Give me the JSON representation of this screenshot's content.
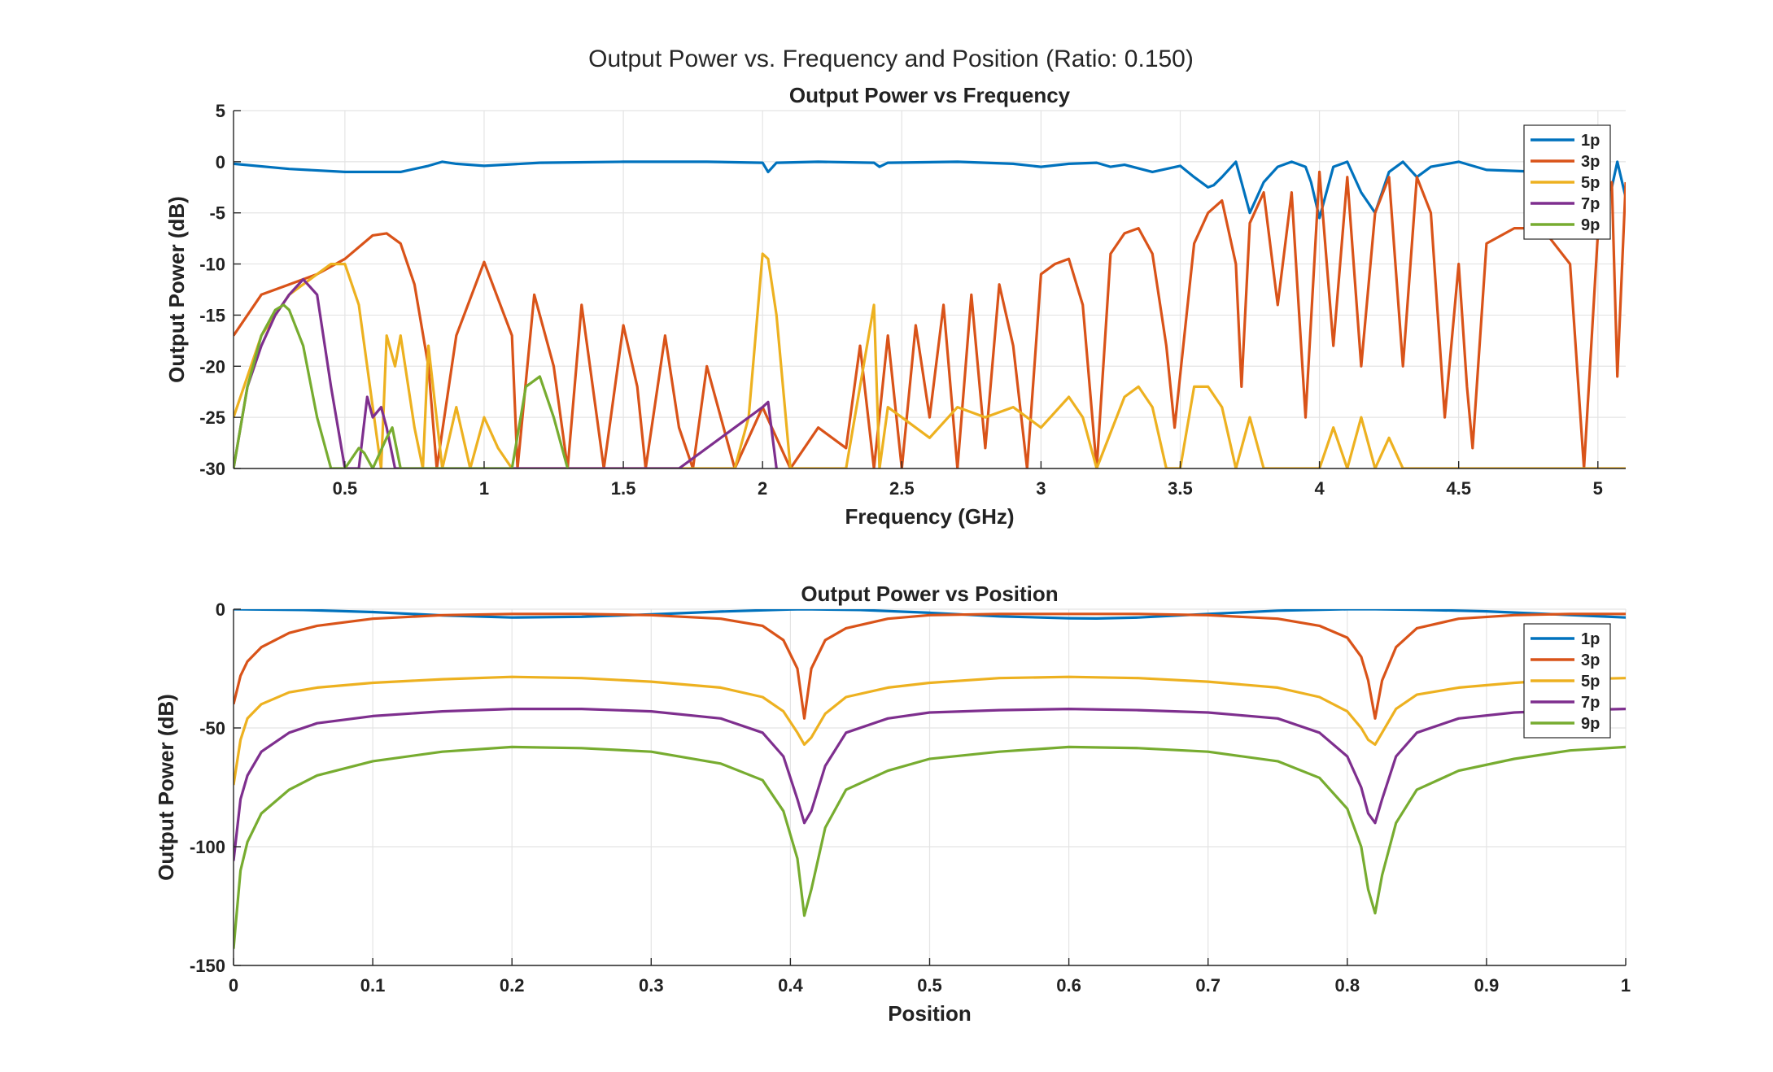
{
  "figure": {
    "suptitle": "Output Power vs. Frequency and Position (Ratio: 0.150)"
  },
  "chart_data": [
    {
      "type": "line",
      "title": "Output Power vs Frequency",
      "xlabel": "Frequency (GHz)",
      "ylabel": "Output Power (dB)",
      "xlim": [
        0.1,
        5.1
      ],
      "ylim": [
        -30,
        5
      ],
      "xticks": [
        0.5,
        1,
        1.5,
        2,
        2.5,
        3,
        3.5,
        4,
        4.5,
        5
      ],
      "xtick_labels": [
        "0.5",
        "1",
        "1.5",
        "2",
        "2.5",
        "3",
        "3.5",
        "4",
        "4.5",
        "5"
      ],
      "yticks": [
        5,
        0,
        -5,
        -10,
        -15,
        -20,
        -25,
        -30
      ],
      "ytick_labels": [
        "5",
        "0",
        "-5",
        "-10",
        "-15",
        "-20",
        "-25",
        "-30"
      ],
      "grid": true,
      "legend": "top-right",
      "series": [
        {
          "name": "1p",
          "color": "#0072BD",
          "x": [
            0.1,
            0.3,
            0.5,
            0.7,
            0.8,
            0.85,
            0.9,
            1.0,
            1.2,
            1.5,
            1.8,
            2.0,
            2.02,
            2.05,
            2.2,
            2.4,
            2.42,
            2.45,
            2.7,
            2.9,
            3.0,
            3.1,
            3.2,
            3.25,
            3.3,
            3.4,
            3.5,
            3.55,
            3.6,
            3.62,
            3.65,
            3.7,
            3.72,
            3.75,
            3.8,
            3.85,
            3.9,
            3.95,
            3.97,
            4.0,
            4.05,
            4.1,
            4.15,
            4.2,
            4.25,
            4.3,
            4.35,
            4.4,
            4.5,
            4.6,
            4.8,
            5.0,
            5.05,
            5.07,
            5.1
          ],
          "y": [
            -0.2,
            -0.7,
            -1.0,
            -1.0,
            -0.4,
            0.0,
            -0.2,
            -0.4,
            -0.1,
            0.0,
            0.0,
            -0.1,
            -1.0,
            -0.1,
            0.0,
            -0.1,
            -0.5,
            -0.1,
            0.0,
            -0.2,
            -0.5,
            -0.2,
            -0.1,
            -0.5,
            -0.3,
            -1.0,
            -0.4,
            -1.5,
            -2.5,
            -2.3,
            -1.5,
            0.0,
            -2.0,
            -5.0,
            -2.0,
            -0.5,
            0.0,
            -0.5,
            -2.0,
            -5.5,
            -0.5,
            0.0,
            -3.0,
            -5.0,
            -1.0,
            0.0,
            -1.5,
            -0.5,
            0.0,
            -0.8,
            -1.0,
            -1.0,
            -2.5,
            0.0,
            -3.5
          ]
        },
        {
          "name": "3p",
          "color": "#D95319",
          "x": [
            0.1,
            0.2,
            0.3,
            0.4,
            0.5,
            0.6,
            0.65,
            0.7,
            0.75,
            0.8,
            0.83,
            0.9,
            1.0,
            1.1,
            1.12,
            1.18,
            1.25,
            1.3,
            1.35,
            1.4,
            1.43,
            1.5,
            1.55,
            1.58,
            1.65,
            1.7,
            1.75,
            1.8,
            1.9,
            2.0,
            2.1,
            2.2,
            2.3,
            2.35,
            2.4,
            2.45,
            2.5,
            2.55,
            2.6,
            2.65,
            2.7,
            2.75,
            2.8,
            2.85,
            2.9,
            2.95,
            3.0,
            3.05,
            3.1,
            3.15,
            3.2,
            3.25,
            3.3,
            3.35,
            3.4,
            3.45,
            3.48,
            3.55,
            3.6,
            3.65,
            3.7,
            3.72,
            3.75,
            3.8,
            3.85,
            3.9,
            3.95,
            4.0,
            4.05,
            4.1,
            4.15,
            4.2,
            4.25,
            4.3,
            4.35,
            4.4,
            4.45,
            4.5,
            4.53,
            4.55,
            4.6,
            4.7,
            4.8,
            4.9,
            4.95,
            5.0,
            5.05,
            5.07,
            5.1
          ],
          "y": [
            -17,
            -13,
            -12,
            -11,
            -9.5,
            -7.2,
            -7.0,
            -8.0,
            -12,
            -20,
            -30,
            -17,
            -9.8,
            -17,
            -30,
            -13,
            -20,
            -30,
            -14,
            -24,
            -30,
            -16,
            -22,
            -30,
            -17,
            -26,
            -30,
            -20,
            -30,
            -24,
            -30,
            -26,
            -28,
            -18,
            -30,
            -17,
            -30,
            -16,
            -25,
            -14,
            -30,
            -13,
            -28,
            -12,
            -18,
            -30,
            -11,
            -10,
            -9.5,
            -14,
            -30,
            -9,
            -7,
            -6.5,
            -9,
            -18,
            -26,
            -8,
            -5,
            -3.8,
            -10,
            -22,
            -6,
            -3,
            -14,
            -3,
            -25,
            -1,
            -18,
            -1.5,
            -20,
            -5,
            -1.5,
            -20,
            -1.5,
            -5,
            -25,
            -10,
            -22,
            -28,
            -8,
            -6.5,
            -6.5,
            -10,
            -30,
            -7,
            -2,
            -21,
            -2
          ]
        },
        {
          "name": "5p",
          "color": "#EDB120",
          "x": [
            0.1,
            0.2,
            0.3,
            0.4,
            0.45,
            0.5,
            0.55,
            0.6,
            0.63,
            0.65,
            0.68,
            0.7,
            0.75,
            0.78,
            0.8,
            0.85,
            0.9,
            0.95,
            1.0,
            1.05,
            1.1,
            1.3,
            1.5,
            1.7,
            1.8,
            1.9,
            1.95,
            2.0,
            2.02,
            2.05,
            2.1,
            2.2,
            2.3,
            2.4,
            2.42,
            2.45,
            2.5,
            2.6,
            2.7,
            2.8,
            2.9,
            3.0,
            3.1,
            3.15,
            3.2,
            3.3,
            3.35,
            3.4,
            3.45,
            3.5,
            3.55,
            3.6,
            3.65,
            3.7,
            3.75,
            3.8,
            3.85,
            3.9,
            3.95,
            4.0,
            4.05,
            4.1,
            4.15,
            4.2,
            4.25,
            4.3,
            5.0,
            5.1
          ],
          "y": [
            -25,
            -17,
            -13,
            -11,
            -10,
            -10,
            -14,
            -24,
            -30,
            -17,
            -20,
            -17,
            -26,
            -30,
            -18,
            -30,
            -24,
            -30,
            -25,
            -28,
            -30,
            -30,
            -30,
            -30,
            -30,
            -30,
            -25,
            -9,
            -9.5,
            -15,
            -30,
            -30,
            -30,
            -14,
            -30,
            -24,
            -25,
            -27,
            -24,
            -25,
            -24,
            -26,
            -23,
            -25,
            -30,
            -23,
            -22,
            -24,
            -30,
            -30,
            -22,
            -22,
            -24,
            -30,
            -25,
            -30,
            -30,
            -30,
            -30,
            -30,
            -26,
            -30,
            -25,
            -30,
            -27,
            -30,
            -30,
            -30
          ]
        },
        {
          "name": "7p",
          "color": "#7E2F8E",
          "x": [
            0.1,
            0.15,
            0.2,
            0.25,
            0.3,
            0.35,
            0.4,
            0.45,
            0.5,
            0.55,
            0.58,
            0.6,
            0.63,
            0.65,
            0.68,
            0.7,
            1.7,
            2.0,
            2.02,
            2.05
          ],
          "y": [
            -30,
            -22,
            -18,
            -15,
            -13,
            -11.5,
            -13,
            -22,
            -30,
            -30,
            -23,
            -25,
            -24,
            -26,
            -30,
            -30,
            -30,
            -24,
            -23.5,
            -30
          ]
        },
        {
          "name": "9p",
          "color": "#77AC30",
          "x": [
            0.1,
            0.15,
            0.2,
            0.25,
            0.28,
            0.3,
            0.35,
            0.4,
            0.45,
            0.5,
            0.55,
            0.57,
            0.6,
            0.65,
            0.67,
            0.7,
            1.1,
            1.15,
            1.2,
            1.25,
            1.3
          ],
          "y": [
            -30,
            -22,
            -17,
            -14.5,
            -14.0,
            -14.5,
            -18,
            -25,
            -30,
            -30,
            -28,
            -28.5,
            -30,
            -27,
            -26,
            -30,
            -30,
            -22,
            -21,
            -25,
            -30
          ]
        }
      ]
    },
    {
      "type": "line",
      "title": "Output Power vs Position",
      "xlabel": "Position",
      "ylabel": "Output Power (dB)",
      "xlim": [
        0,
        1
      ],
      "ylim": [
        -150,
        0
      ],
      "xticks": [
        0,
        0.1,
        0.2,
        0.3,
        0.4,
        0.5,
        0.6,
        0.7,
        0.8,
        0.9,
        1
      ],
      "xtick_labels": [
        "0",
        "0.1",
        "0.2",
        "0.3",
        "0.4",
        "0.5",
        "0.6",
        "0.7",
        "0.8",
        "0.9",
        "1"
      ],
      "yticks": [
        0,
        -50,
        -100,
        -150
      ],
      "ytick_labels": [
        "0",
        "-50",
        "-100",
        "-150"
      ],
      "grid": true,
      "legend": "top-right",
      "series": [
        {
          "name": "1p",
          "color": "#0072BD",
          "x": [
            0,
            0.05,
            0.1,
            0.15,
            0.2,
            0.25,
            0.3,
            0.35,
            0.4,
            0.41,
            0.45,
            0.5,
            0.55,
            0.6,
            0.62,
            0.65,
            0.7,
            0.75,
            0.8,
            0.82,
            0.85,
            0.9,
            0.95,
            1.0
          ],
          "y": [
            0,
            -0.3,
            -1.2,
            -2.6,
            -3.5,
            -3.2,
            -2.2,
            -1.0,
            -0.1,
            0,
            -0.3,
            -1.5,
            -3.0,
            -3.8,
            -3.9,
            -3.5,
            -2.0,
            -0.6,
            0,
            0,
            -0.2,
            -0.9,
            -2.2,
            -3.5
          ]
        },
        {
          "name": "3p",
          "color": "#D95319",
          "x": [
            0,
            0.005,
            0.01,
            0.02,
            0.04,
            0.06,
            0.1,
            0.15,
            0.2,
            0.25,
            0.3,
            0.35,
            0.38,
            0.395,
            0.405,
            0.41,
            0.415,
            0.425,
            0.44,
            0.47,
            0.5,
            0.55,
            0.6,
            0.65,
            0.7,
            0.75,
            0.78,
            0.8,
            0.81,
            0.815,
            0.82,
            0.825,
            0.835,
            0.85,
            0.88,
            0.92,
            0.96,
            1.0
          ],
          "y": [
            -40,
            -28,
            -22,
            -16,
            -10,
            -7,
            -4,
            -2.5,
            -2,
            -2,
            -2.5,
            -4,
            -7,
            -13,
            -25,
            -46,
            -25,
            -13,
            -8,
            -4,
            -2.5,
            -2,
            -2,
            -2,
            -2.5,
            -4,
            -7,
            -12,
            -20,
            -30,
            -46,
            -30,
            -16,
            -8,
            -4,
            -2.5,
            -2,
            -2
          ]
        },
        {
          "name": "5p",
          "color": "#EDB120",
          "x": [
            0,
            0.005,
            0.01,
            0.02,
            0.04,
            0.06,
            0.1,
            0.15,
            0.2,
            0.25,
            0.3,
            0.35,
            0.38,
            0.395,
            0.405,
            0.41,
            0.415,
            0.425,
            0.44,
            0.47,
            0.5,
            0.55,
            0.6,
            0.65,
            0.7,
            0.75,
            0.78,
            0.8,
            0.81,
            0.815,
            0.82,
            0.825,
            0.835,
            0.85,
            0.88,
            0.92,
            0.96,
            1.0
          ],
          "y": [
            -74,
            -55,
            -46,
            -40,
            -35,
            -33,
            -31,
            -29.5,
            -28.5,
            -29,
            -30.5,
            -33,
            -37,
            -43,
            -52,
            -57,
            -54,
            -44,
            -37,
            -33,
            -31,
            -29,
            -28.5,
            -29,
            -30.5,
            -33,
            -37,
            -43,
            -50,
            -55,
            -57,
            -52,
            -42,
            -36,
            -33,
            -31,
            -29.5,
            -29
          ]
        },
        {
          "name": "7p",
          "color": "#7E2F8E",
          "x": [
            0,
            0.005,
            0.01,
            0.02,
            0.04,
            0.06,
            0.1,
            0.15,
            0.2,
            0.25,
            0.3,
            0.35,
            0.38,
            0.395,
            0.405,
            0.41,
            0.415,
            0.425,
            0.44,
            0.47,
            0.5,
            0.55,
            0.6,
            0.65,
            0.7,
            0.75,
            0.78,
            0.8,
            0.81,
            0.815,
            0.82,
            0.825,
            0.835,
            0.85,
            0.88,
            0.92,
            0.96,
            1.0
          ],
          "y": [
            -106,
            -80,
            -70,
            -60,
            -52,
            -48,
            -45,
            -43,
            -42,
            -42,
            -43,
            -46,
            -52,
            -62,
            -80,
            -90,
            -85,
            -66,
            -52,
            -46,
            -43.5,
            -42.5,
            -42,
            -42.5,
            -43.5,
            -46,
            -52,
            -62,
            -75,
            -86,
            -90,
            -80,
            -62,
            -52,
            -46,
            -43.5,
            -42.5,
            -42
          ]
        },
        {
          "name": "9p",
          "color": "#77AC30",
          "x": [
            0,
            0.005,
            0.01,
            0.02,
            0.04,
            0.06,
            0.1,
            0.15,
            0.2,
            0.25,
            0.3,
            0.35,
            0.38,
            0.395,
            0.405,
            0.41,
            0.415,
            0.425,
            0.44,
            0.47,
            0.5,
            0.55,
            0.6,
            0.65,
            0.7,
            0.75,
            0.78,
            0.8,
            0.81,
            0.815,
            0.82,
            0.825,
            0.835,
            0.85,
            0.88,
            0.92,
            0.96,
            1.0
          ],
          "y": [
            -143,
            -110,
            -98,
            -86,
            -76,
            -70,
            -64,
            -60,
            -58,
            -58.5,
            -60,
            -65,
            -72,
            -85,
            -105,
            -129,
            -118,
            -92,
            -76,
            -68,
            -63,
            -60,
            -58,
            -58.5,
            -60,
            -64,
            -71,
            -84,
            -100,
            -118,
            -128,
            -112,
            -90,
            -76,
            -68,
            -63,
            -59.5,
            -58
          ]
        }
      ]
    }
  ]
}
